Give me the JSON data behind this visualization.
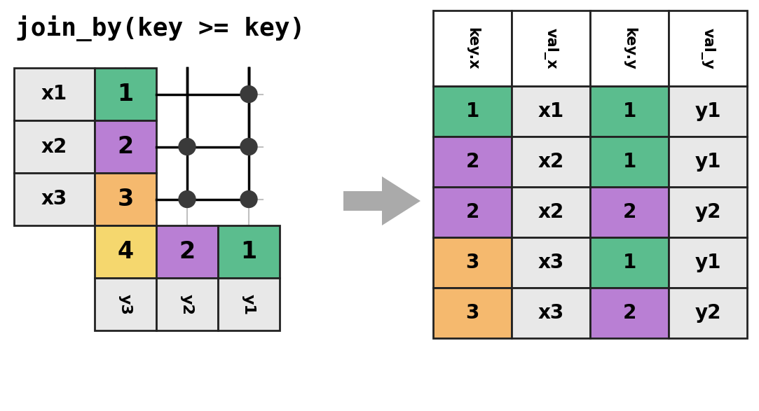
{
  "title": "join_by(key >= key)",
  "title_fontsize": 26,
  "title_font": "monospace",
  "colors": {
    "green": "#5BBD8E",
    "purple": "#B97FD4",
    "orange": "#F5B96E",
    "yellow": "#F5D76E",
    "light_gray": "#E8E8E8",
    "white": "#FFFFFF",
    "cell_border": "#222222",
    "dot_color": "#3A3A3A",
    "arrow_gray": "#AAAAAA",
    "line_gray": "#C0C0C0"
  },
  "x_table": {
    "rows": [
      {
        "val_label": "x1",
        "key": "1",
        "key_color": "green"
      },
      {
        "val_label": "x2",
        "key": "2",
        "key_color": "purple"
      },
      {
        "val_label": "x3",
        "key": "3",
        "key_color": "orange"
      }
    ]
  },
  "y_table": {
    "cols_right_to_left": [
      {
        "key": "1",
        "key_color": "green",
        "val_label": "y1"
      },
      {
        "key": "2",
        "key_color": "purple",
        "val_label": "y2"
      },
      {
        "key": "4",
        "key_color": "yellow",
        "val_label": "y3"
      }
    ]
  },
  "dots": [
    {
      "row": 0,
      "col": 2
    },
    {
      "row": 1,
      "col": 1
    },
    {
      "row": 1,
      "col": 2
    },
    {
      "row": 2,
      "col": 1
    },
    {
      "row": 2,
      "col": 2
    }
  ],
  "output_table": {
    "headers": [
      "key.x",
      "val_x_",
      "key.y",
      "val_y"
    ],
    "rows": [
      {
        "key_x": "1",
        "kx_color": "green",
        "val_x": "x1",
        "key_y": "1",
        "ky_color": "green",
        "val_y": "y1"
      },
      {
        "key_x": "2",
        "kx_color": "purple",
        "val_x": "x2",
        "key_y": "1",
        "ky_color": "green",
        "val_y": "y1"
      },
      {
        "key_x": "2",
        "kx_color": "purple",
        "val_x": "x2",
        "key_y": "2",
        "ky_color": "purple",
        "val_y": "y2"
      },
      {
        "key_x": "3",
        "kx_color": "orange",
        "val_x": "x3",
        "key_y": "1",
        "ky_color": "green",
        "val_y": "y1"
      },
      {
        "key_x": "3",
        "kx_color": "orange",
        "val_x": "x3",
        "key_y": "2",
        "ky_color": "purple",
        "val_y": "y2"
      }
    ]
  }
}
